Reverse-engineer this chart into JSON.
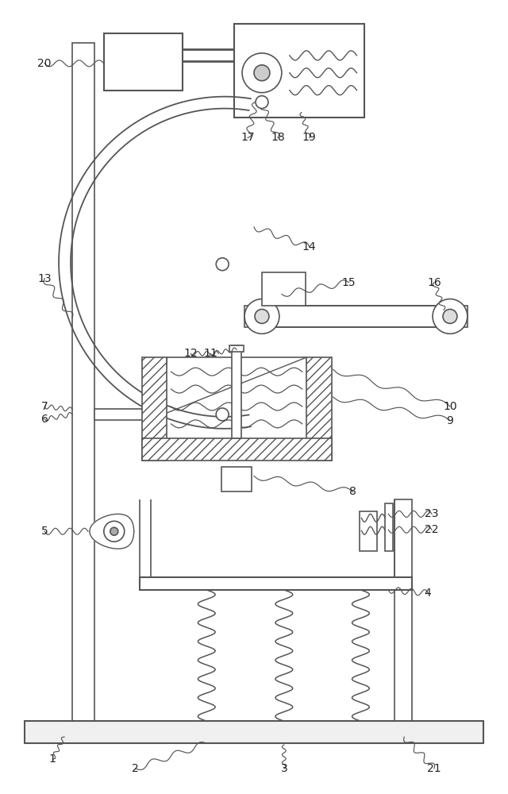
{
  "bg_color": "#ffffff",
  "line_color": "#555555",
  "figsize": [
    6.4,
    10.0
  ],
  "dpi": 100,
  "label_fs": 10
}
